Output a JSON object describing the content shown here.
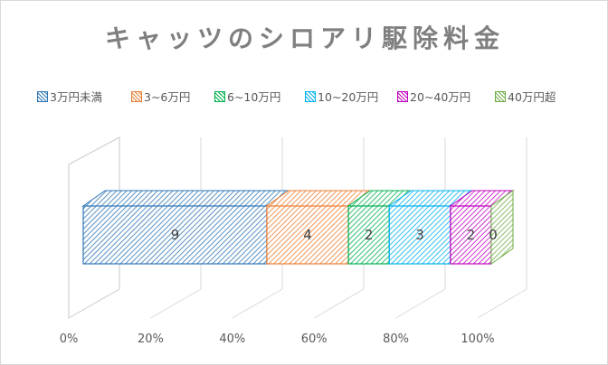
{
  "chart_data": {
    "type": "bar",
    "orientation": "horizontal-stacked-100-3d",
    "title": "キャッツのシロアリ駆除料金",
    "categories": [
      ""
    ],
    "series": [
      {
        "name": "3万円未満",
        "values": [
          9
        ],
        "color": "#2e75b6"
      },
      {
        "name": "3~6万円",
        "values": [
          4
        ],
        "color": "#ed7d31"
      },
      {
        "name": "6~10万円",
        "values": [
          2
        ],
        "color": "#00b050"
      },
      {
        "name": "10~20万円",
        "values": [
          3
        ],
        "color": "#00b0f0"
      },
      {
        "name": "20~40万円",
        "values": [
          2
        ],
        "color": "#c000c0"
      },
      {
        "name": "40万円超",
        "values": [
          0
        ],
        "color": "#70ad47"
      }
    ],
    "x_ticks": [
      "0%",
      "20%",
      "40%",
      "60%",
      "80%",
      "100%"
    ],
    "xlim": [
      0,
      100
    ],
    "legend_position": "top",
    "grid": true
  }
}
